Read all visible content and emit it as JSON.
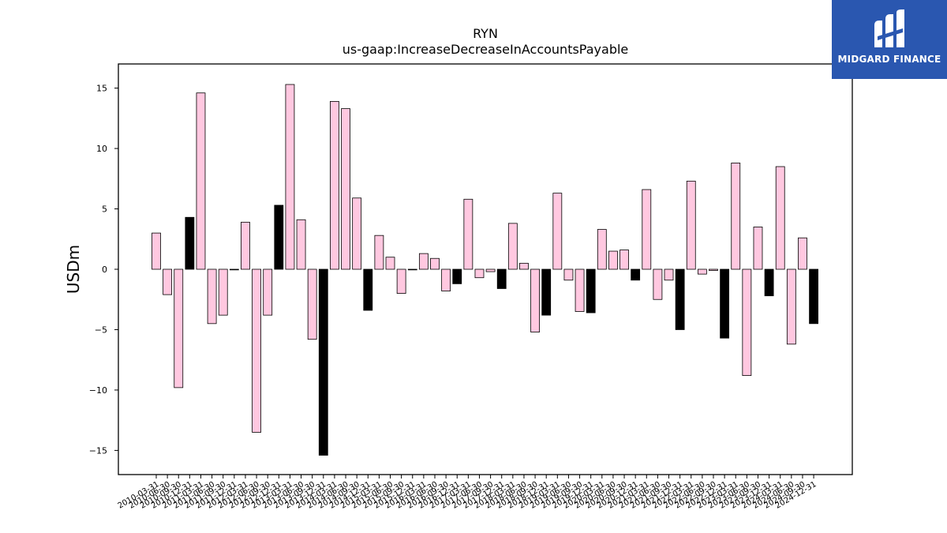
{
  "chart_data": {
    "type": "bar",
    "title": "RYN",
    "subtitle": "us-gaap:IncreaseDecreaseInAccountsPayable",
    "ylabel": "USDm",
    "xlabel": "",
    "ylim": [
      -17,
      17
    ],
    "yticks": [
      -15,
      -10,
      -5,
      0,
      5,
      10,
      15
    ],
    "grid": false,
    "colors": {
      "default": "#ffc8e0",
      "q4": "#000000",
      "edge": "#000000"
    },
    "categories": [
      "2010-03-31",
      "2010-06-30",
      "2010-09-30",
      "2010-12-31",
      "2011-03-31",
      "2011-06-30",
      "2011-09-30",
      "2011-12-31",
      "2012-03-31",
      "2012-06-30",
      "2012-09-30",
      "2012-12-31",
      "2013-03-31",
      "2013-06-30",
      "2013-09-30",
      "2013-12-31",
      "2014-03-31",
      "2014-06-30",
      "2014-09-30",
      "2014-12-31",
      "2015-03-31",
      "2015-06-30",
      "2015-09-30",
      "2015-12-31",
      "2016-03-31",
      "2016-06-30",
      "2016-09-30",
      "2016-12-31",
      "2017-03-31",
      "2017-06-30",
      "2017-09-30",
      "2017-12-31",
      "2018-03-31",
      "2018-06-30",
      "2018-09-30",
      "2018-12-31",
      "2019-03-31",
      "2019-06-30",
      "2019-09-30",
      "2019-12-31",
      "2020-03-31",
      "2020-06-30",
      "2020-09-30",
      "2020-12-31",
      "2021-03-31",
      "2021-06-30",
      "2021-09-30",
      "2021-12-31",
      "2022-03-31",
      "2022-06-30",
      "2022-09-30",
      "2022-12-31",
      "2023-03-31",
      "2023-06-30",
      "2023-09-30",
      "2023-12-31",
      "2024-03-31",
      "2024-06-30",
      "2024-09-30",
      "2024-12-31"
    ],
    "values": [
      3.0,
      -2.1,
      -9.8,
      4.3,
      14.6,
      -4.5,
      -3.8,
      0.0,
      3.9,
      -13.5,
      -3.8,
      5.3,
      15.3,
      4.1,
      -5.8,
      -15.4,
      13.9,
      13.3,
      5.9,
      -3.4,
      2.8,
      1.0,
      -2.0,
      0.0,
      1.3,
      0.9,
      -1.8,
      -1.2,
      5.8,
      -0.7,
      -0.2,
      -1.6,
      3.8,
      0.5,
      -5.2,
      -3.8,
      6.3,
      -0.9,
      -3.5,
      -3.6,
      3.3,
      1.5,
      1.6,
      -0.9,
      6.6,
      -2.5,
      -0.9,
      -5.0,
      7.3,
      -0.4,
      -0.1,
      -5.7,
      8.8,
      -8.8,
      3.5,
      -2.2,
      8.5,
      -6.2,
      2.6,
      -4.5
    ]
  },
  "logo": {
    "text": "MIDGARD FINANCE"
  }
}
